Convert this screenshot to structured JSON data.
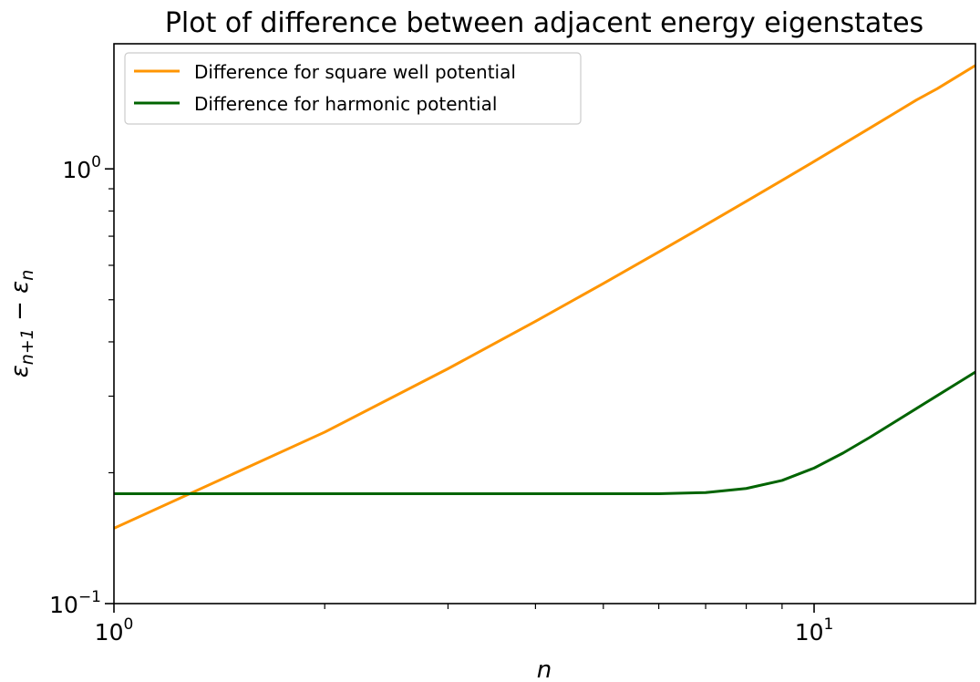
{
  "chart_data": {
    "type": "line",
    "title": "Plot of difference between adjacent energy eigenstates",
    "xlabel": "n",
    "ylabel": {
      "parts": [
        {
          "text": "ε"
        },
        {
          "text": "n+1"
        },
        {
          "text": " − "
        },
        {
          "text": "ε"
        },
        {
          "text": "n"
        }
      ]
    },
    "xscale": "log",
    "yscale": "log",
    "xlim": [
      1,
      17
    ],
    "ylim": [
      0.1,
      1.94
    ],
    "grid": false,
    "legend_position": "upper left",
    "x_ticks": [
      {
        "value": 1,
        "base": "10",
        "exp": "0"
      },
      {
        "value": 10,
        "base": "10",
        "exp": "1"
      }
    ],
    "y_ticks": [
      {
        "value": 0.1,
        "base": "10",
        "exp": "−1"
      },
      {
        "value": 1,
        "base": "10",
        "exp": "0"
      }
    ],
    "x": [
      1,
      2,
      3,
      4,
      5,
      6,
      7,
      8,
      9,
      10,
      11,
      12,
      13,
      14,
      15,
      16,
      17
    ],
    "series": [
      {
        "name": "Difference for square well potential",
        "color": "#ff9500",
        "values": [
          0.149,
          0.248,
          0.347,
          0.446,
          0.545,
          0.644,
          0.743,
          0.842,
          0.941,
          1.04,
          1.14,
          1.24,
          1.34,
          1.44,
          1.53,
          1.63,
          1.73
        ]
      },
      {
        "name": "Difference for harmonic potential",
        "color": "#006400",
        "values": [
          0.179,
          0.179,
          0.179,
          0.179,
          0.179,
          0.179,
          0.18,
          0.184,
          0.192,
          0.205,
          0.222,
          0.241,
          0.261,
          0.281,
          0.301,
          0.321,
          0.341
        ]
      }
    ]
  }
}
